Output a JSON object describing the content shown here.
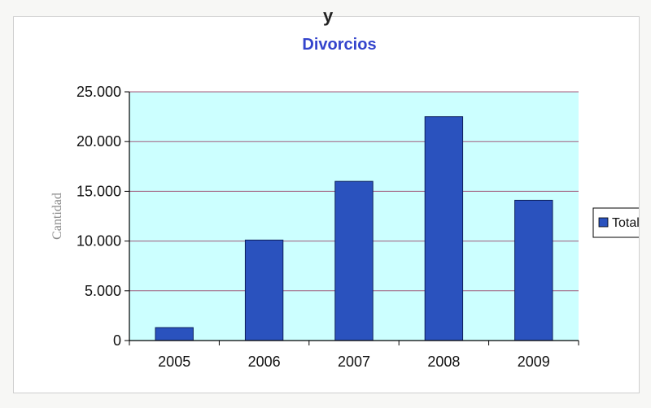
{
  "page": {
    "top_fragment": "y"
  },
  "chart_data": {
    "type": "bar",
    "title": "Divorcios",
    "ylabel": "Cantidad",
    "xlabel": "",
    "categories": [
      "2005",
      "2006",
      "2007",
      "2008",
      "2009"
    ],
    "series": [
      {
        "name": "Total",
        "values": [
          1300,
          10100,
          16000,
          22500,
          14100
        ]
      }
    ],
    "ylim": [
      0,
      25000
    ],
    "yticks": [
      0,
      5000,
      10000,
      15000,
      20000,
      25000
    ],
    "ytick_labels": [
      "0",
      "5.000",
      "10.000",
      "15.000",
      "20.000",
      "25.000"
    ],
    "grid": true,
    "legend": "right",
    "colors": {
      "bar": "#2a52be",
      "bar_edge": "#0d1f5c",
      "plot_bg": "#ccffff",
      "grid": "#a05a7a",
      "title": "#3344cc"
    }
  }
}
